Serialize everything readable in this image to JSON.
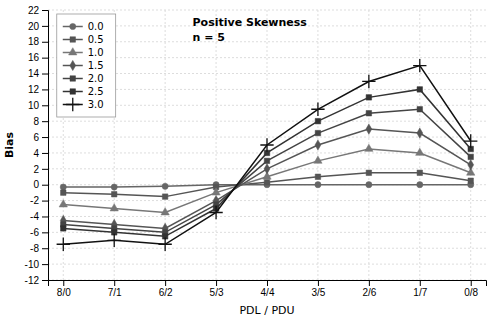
{
  "chart_data": {
    "type": "line",
    "categories": [
      "8/0",
      "7/1",
      "6/2",
      "5/3",
      "4/4",
      "3/5",
      "2/6",
      "1/7",
      "0/8"
    ],
    "x_label": "PDL / PDU",
    "y_label": "Bias",
    "annotations": [
      "Positive Skewness",
      "n = 5"
    ],
    "ylim": [
      -12,
      22
    ],
    "yticks": [
      -12,
      -10,
      -8,
      -6,
      -4,
      -2,
      0,
      2,
      4,
      6,
      8,
      10,
      12,
      14,
      16,
      18,
      20,
      22
    ],
    "grid": true,
    "legend": "upper left",
    "series": [
      {
        "name": "0.0",
        "marker": "circle",
        "color": "#666666",
        "values": [
          -0.3,
          -0.3,
          -0.2,
          0.0,
          0.0,
          0.0,
          0.0,
          0.0,
          0.0
        ]
      },
      {
        "name": "0.5",
        "marker": "square",
        "color": "#555555",
        "values": [
          -1.0,
          -1.2,
          -1.5,
          -0.3,
          0.3,
          1.0,
          1.5,
          1.5,
          0.5
        ]
      },
      {
        "name": "1.0",
        "marker": "triangle",
        "color": "#777777",
        "values": [
          -2.5,
          -3.0,
          -3.5,
          -1.0,
          1.0,
          3.0,
          4.5,
          4.0,
          1.5
        ]
      },
      {
        "name": "1.5",
        "marker": "diamond",
        "color": "#555555",
        "values": [
          -4.5,
          -5.0,
          -5.5,
          -2.0,
          2.0,
          5.0,
          7.0,
          6.5,
          2.5
        ]
      },
      {
        "name": "2.0",
        "marker": "square",
        "color": "#444444",
        "values": [
          -5.0,
          -5.5,
          -6.0,
          -2.5,
          3.0,
          6.5,
          9.0,
          9.5,
          3.5
        ]
      },
      {
        "name": "2.5",
        "marker": "square",
        "color": "#333333",
        "values": [
          -5.5,
          -6.0,
          -6.5,
          -3.0,
          4.0,
          8.0,
          11.0,
          12.0,
          4.5
        ]
      },
      {
        "name": "3.0",
        "marker": "plus",
        "color": "#111111",
        "values": [
          -7.5,
          -7.0,
          -7.5,
          -3.5,
          5.0,
          9.5,
          13.0,
          15.0,
          5.5
        ]
      }
    ]
  }
}
